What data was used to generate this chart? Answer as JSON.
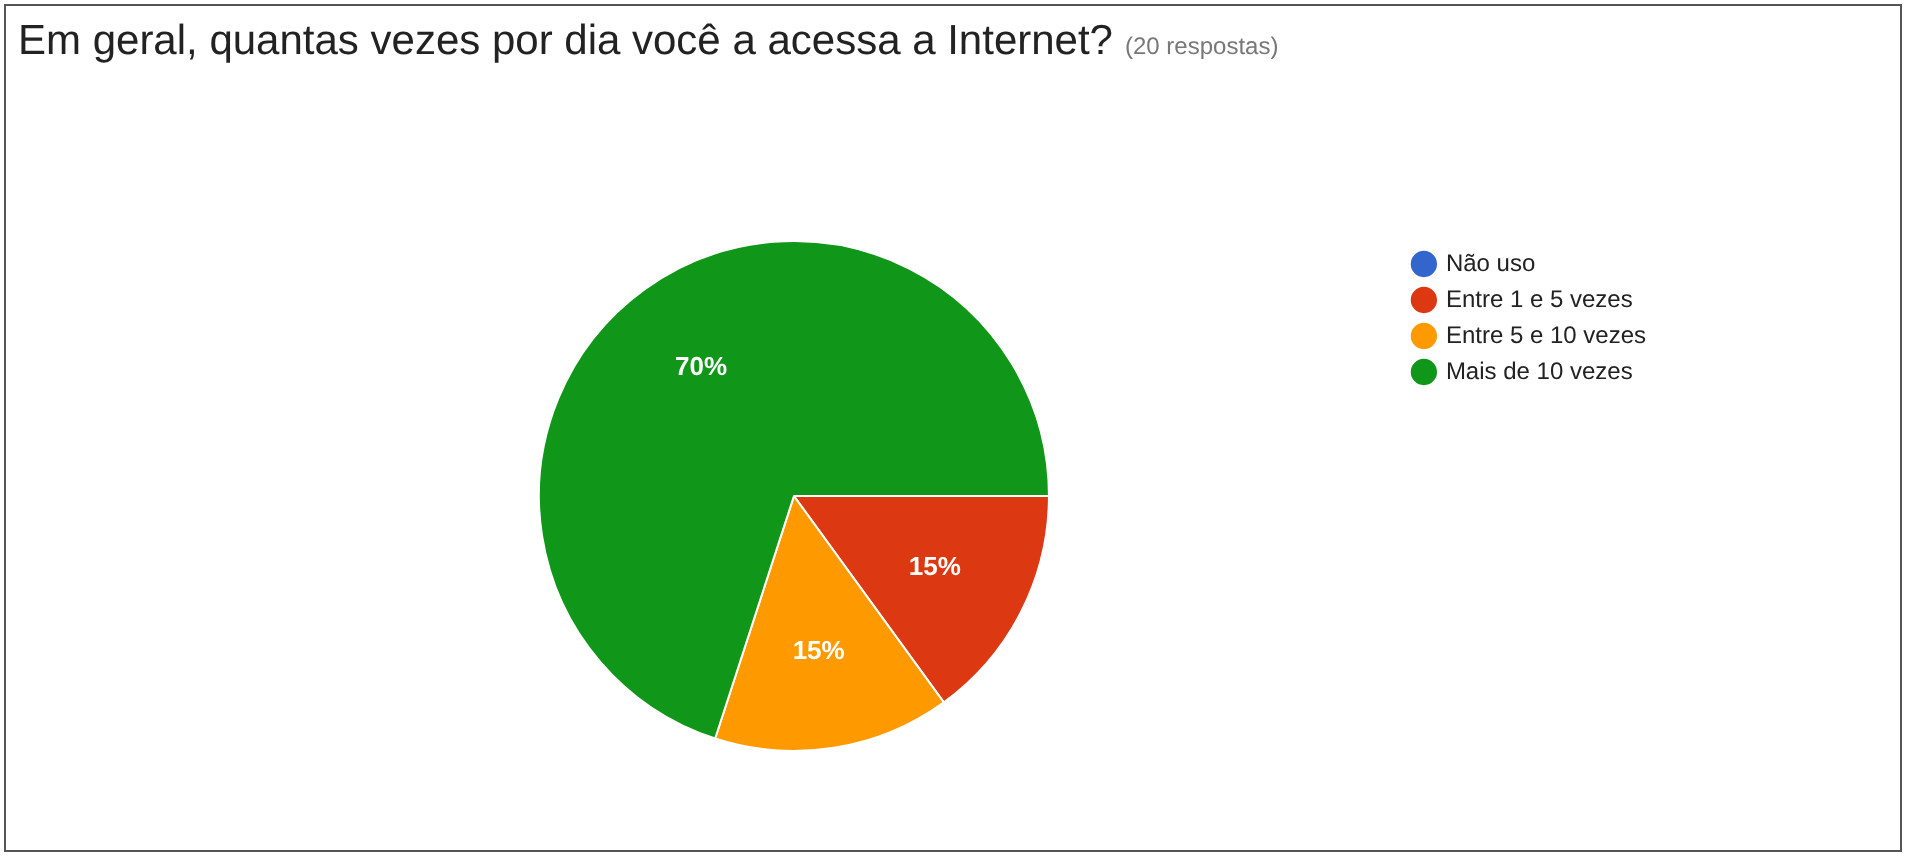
{
  "chart_data": {
    "type": "pie",
    "title": "Em geral, quantas vezes por dia você a acessa a Internet?",
    "subtitle": "(20 respostas)",
    "categories": [
      "Não uso",
      "Entre 1 e 5 vezes",
      "Entre 5 e 10 vezes",
      "Mais de 10 vezes"
    ],
    "values": [
      0,
      15,
      15,
      70
    ],
    "colors": [
      "#3366cc",
      "#dc3912",
      "#ff9900",
      "#109618"
    ],
    "value_labels": [
      null,
      "15%",
      "15%",
      "70%"
    ],
    "legend": "right"
  }
}
